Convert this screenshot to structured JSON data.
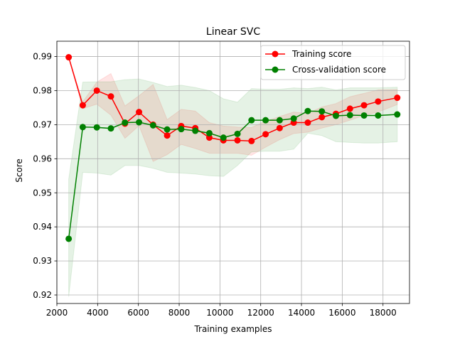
{
  "chart_data": {
    "type": "line",
    "title": "Linear SVC",
    "xlabel": "Training examples",
    "ylabel": "Score",
    "xlim": [
      2000,
      19300
    ],
    "ylim": [
      0.9175,
      0.9945
    ],
    "grid": true,
    "legend_position": "top-right",
    "xticks": [
      2000,
      4000,
      6000,
      8000,
      10000,
      12000,
      14000,
      16000,
      18000
    ],
    "yticks": [
      0.92,
      0.93,
      0.94,
      0.95,
      0.96,
      0.97,
      0.98,
      0.99
    ],
    "x": [
      2580,
      3270,
      3960,
      4650,
      5340,
      6030,
      6720,
      7410,
      8100,
      8790,
      9480,
      10170,
      10860,
      11550,
      12240,
      12930,
      13620,
      14310,
      15000,
      15690,
      16380,
      17070,
      17760,
      18700
    ],
    "series": [
      {
        "name": "Training score",
        "color": "#ff0000",
        "values": [
          0.9898,
          0.9757,
          0.98,
          0.9783,
          0.9703,
          0.9737,
          0.97,
          0.9668,
          0.9696,
          0.969,
          0.9662,
          0.9654,
          0.9654,
          0.9652,
          0.9672,
          0.969,
          0.9706,
          0.9706,
          0.9722,
          0.9732,
          0.9747,
          0.9757,
          0.9768,
          0.9779
        ],
        "band_lower": [
          0.9898,
          0.9747,
          0.976,
          0.9728,
          0.966,
          0.9697,
          0.9592,
          0.9612,
          0.9642,
          0.963,
          0.9616,
          0.9616,
          0.9616,
          0.961,
          0.9634,
          0.9656,
          0.9674,
          0.9678,
          0.969,
          0.97,
          0.9713,
          0.9727,
          0.9737,
          0.9759
        ],
        "band_upper": [
          0.9898,
          0.9767,
          0.9825,
          0.985,
          0.9755,
          0.9785,
          0.9818,
          0.9715,
          0.9745,
          0.974,
          0.9706,
          0.9696,
          0.9693,
          0.9692,
          0.971,
          0.9724,
          0.9737,
          0.9733,
          0.9752,
          0.9762,
          0.9782,
          0.9792,
          0.9802,
          0.9803
        ]
      },
      {
        "name": "Cross-validation score",
        "color": "#008000",
        "values": [
          0.9365,
          0.9693,
          0.9692,
          0.9689,
          0.9706,
          0.9707,
          0.9698,
          0.9686,
          0.9687,
          0.9682,
          0.9675,
          0.9662,
          0.9673,
          0.9713,
          0.9713,
          0.9713,
          0.9718,
          0.974,
          0.9739,
          0.9726,
          0.9728,
          0.9727,
          0.9727,
          0.973
        ],
        "band_lower": [
          0.9195,
          0.956,
          0.9558,
          0.9552,
          0.958,
          0.958,
          0.9572,
          0.956,
          0.9558,
          0.9555,
          0.955,
          0.9548,
          0.958,
          0.962,
          0.9622,
          0.9622,
          0.9628,
          0.9675,
          0.9668,
          0.965,
          0.9648,
          0.9646,
          0.9646,
          0.965
        ],
        "band_upper": [
          0.954,
          0.9825,
          0.9826,
          0.9826,
          0.9832,
          0.9834,
          0.9824,
          0.9812,
          0.9816,
          0.9809,
          0.98,
          0.9776,
          0.9766,
          0.9806,
          0.9804,
          0.9804,
          0.9808,
          0.9806,
          0.981,
          0.9802,
          0.9808,
          0.9808,
          0.9808,
          0.981
        ]
      }
    ]
  }
}
